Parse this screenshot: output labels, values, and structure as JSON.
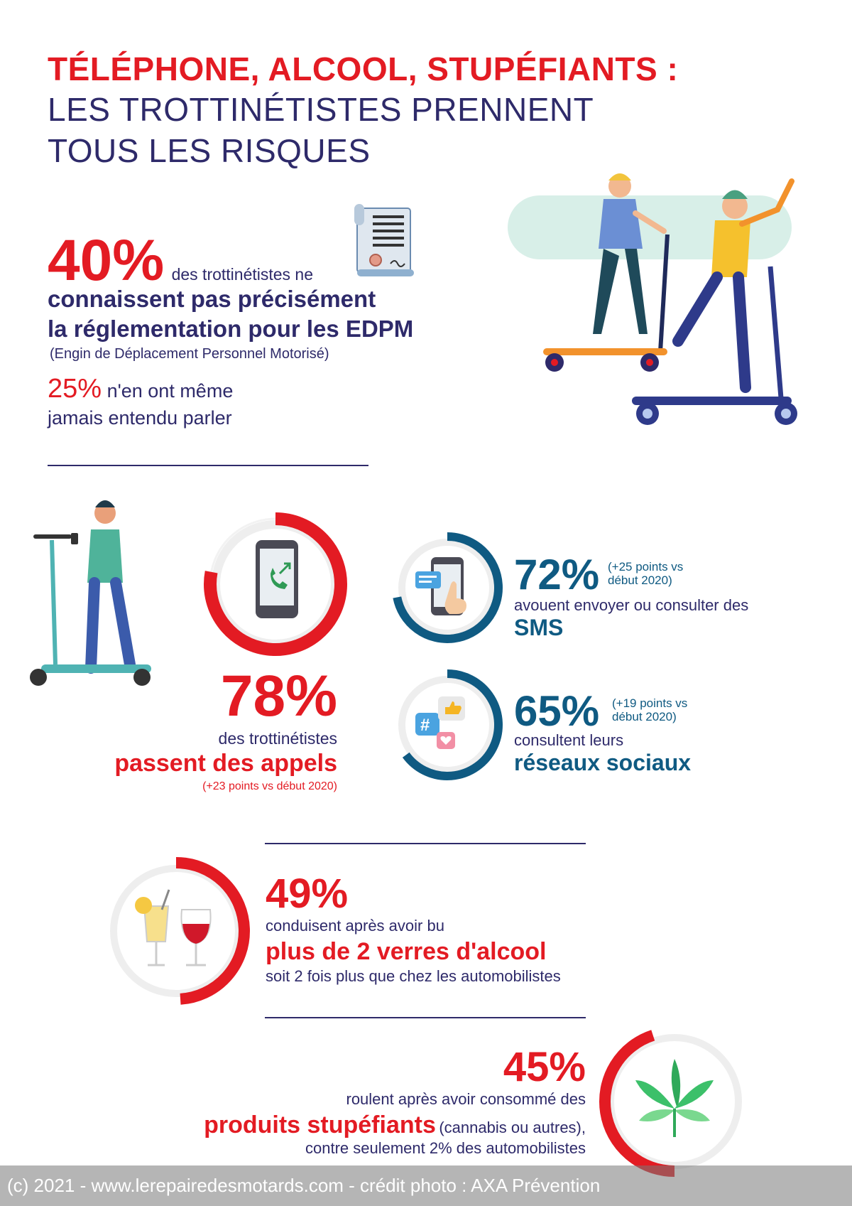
{
  "title": {
    "line1": "TÉLÉPHONE, ALCOOL, STUPÉFIANTS :",
    "line2": "LES TROTTINÉTISTES PRENNENT",
    "line3": "TOUS LES RISQUES"
  },
  "regulation": {
    "pct": "40%",
    "lead": "des trottinétistes ne",
    "bold1": "connaissent pas précisément",
    "bold2": "la réglementation pour les EDPM",
    "note": "(Engin de Déplacement Personnel Motorisé)",
    "pct2": "25%",
    "text2a": "n'en ont même",
    "text2b": "jamais entendu parler"
  },
  "calls": {
    "pct": "78%",
    "value": 0.78,
    "line1": "des trottinétistes",
    "bold": "passent des appels",
    "note": "(+23 points vs début 2020)"
  },
  "sms": {
    "pct": "72%",
    "value": 0.72,
    "note1": "(+25 points vs",
    "note2": "début 2020)",
    "line1": "avouent envoyer ou consulter des",
    "bold": "SMS"
  },
  "social": {
    "pct": "65%",
    "value": 0.65,
    "note1": "(+19 points vs",
    "note2": "début 2020)",
    "line1": "consultent leurs",
    "bold": "réseaux sociaux"
  },
  "alcohol": {
    "pct": "49%",
    "value": 0.49,
    "line1": "conduisent après avoir bu",
    "bold": "plus de 2 verres d'alcool",
    "line2": "soit 2 fois plus que chez les automobilistes"
  },
  "drugs": {
    "pct": "45%",
    "value": 0.45,
    "line1": "roulent après avoir consommé des",
    "bold": "produits stupéfiants",
    "after": "(cannabis ou autres),",
    "line2": "contre seulement 2% des automobilistes"
  },
  "footer": "(c) 2021 - www.lerepairedesmotards.com  - crédit photo : AXA Prévention",
  "colors": {
    "red": "#e31b23",
    "navy": "#2e2a6a",
    "teal": "#0f5a82"
  },
  "icons": [
    "document-icon",
    "phone-call-icon",
    "sms-phone-icon",
    "social-media-icon",
    "drinks-icon",
    "cannabis-leaf-icon"
  ]
}
